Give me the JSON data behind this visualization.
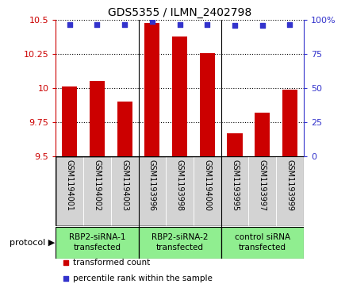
{
  "title": "GDS5355 / ILMN_2402798",
  "samples": [
    "GSM1194001",
    "GSM1194002",
    "GSM1194003",
    "GSM1193996",
    "GSM1193998",
    "GSM1194000",
    "GSM1193995",
    "GSM1193997",
    "GSM1193999"
  ],
  "bar_values": [
    10.01,
    10.05,
    9.9,
    10.48,
    10.38,
    10.26,
    9.67,
    9.82,
    9.99
  ],
  "percentile_values": [
    97,
    97,
    97,
    99,
    97,
    97,
    96,
    96,
    97
  ],
  "ylim": [
    9.5,
    10.5
  ],
  "yticks": [
    9.5,
    9.75,
    10.0,
    10.25,
    10.5
  ],
  "ytick_labels": [
    "9.5",
    "9.75",
    "10",
    "10.25",
    "10.5"
  ],
  "right_yticks": [
    0,
    25,
    50,
    75,
    100
  ],
  "right_ytick_labels": [
    "0",
    "25",
    "50",
    "75",
    "100%"
  ],
  "bar_color": "#cc0000",
  "dot_color": "#3333cc",
  "background_color": "#ffffff",
  "grid_color": "#000000",
  "protocols": [
    {
      "label": "RBP2-siRNA-1\ntransfected",
      "start": 0,
      "end": 3,
      "color": "#90ee90"
    },
    {
      "label": "RBP2-siRNA-2\ntransfected",
      "start": 3,
      "end": 6,
      "color": "#90ee90"
    },
    {
      "label": "control siRNA\ntransfected",
      "start": 6,
      "end": 9,
      "color": "#90ee90"
    }
  ],
  "legend_items": [
    {
      "label": "transformed count",
      "color": "#cc0000",
      "marker": "s"
    },
    {
      "label": "percentile rank within the sample",
      "color": "#3333cc",
      "marker": "s"
    }
  ],
  "left_axis_color": "#cc0000",
  "right_axis_color": "#3333cc",
  "sample_bg_color": "#d3d3d3",
  "bar_width": 0.55,
  "group_boundaries": [
    3,
    6
  ]
}
